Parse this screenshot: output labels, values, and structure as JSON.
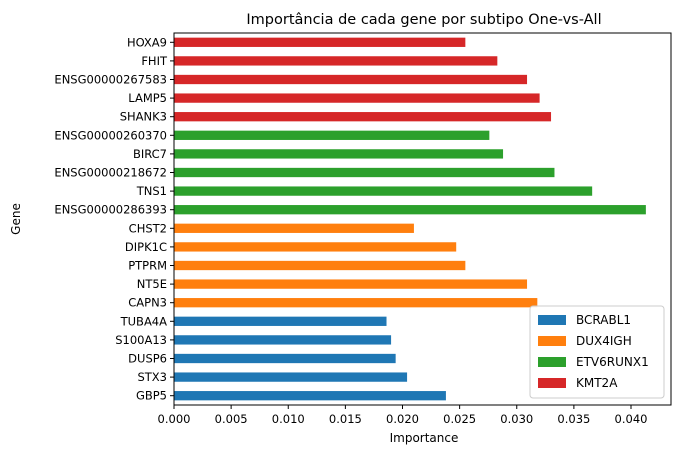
{
  "chart_data": {
    "type": "bar",
    "orientation": "horizontal",
    "title": "Importância de cada gene por subtipo One-vs-All",
    "xlabel": "Importance",
    "ylabel": "Gene",
    "xlim": [
      0,
      0.0435
    ],
    "xticks": [
      "0.000",
      "0.005",
      "0.010",
      "0.015",
      "0.020",
      "0.025",
      "0.030",
      "0.035",
      "0.040"
    ],
    "grid": false,
    "legend_position": "lower-right",
    "series": [
      {
        "name": "BCRABL1",
        "color": "#1f77b4"
      },
      {
        "name": "DUX4IGH",
        "color": "#ff7f0e"
      },
      {
        "name": "ETV6RUNX1",
        "color": "#2ca02c"
      },
      {
        "name": "KMT2A",
        "color": "#d62728"
      }
    ],
    "bars": [
      {
        "gene": "GBP5",
        "value": 0.0238,
        "series": "BCRABL1"
      },
      {
        "gene": "STX3",
        "value": 0.0204,
        "series": "BCRABL1"
      },
      {
        "gene": "DUSP6",
        "value": 0.0194,
        "series": "BCRABL1"
      },
      {
        "gene": "S100A13",
        "value": 0.019,
        "series": "BCRABL1"
      },
      {
        "gene": "TUBA4A",
        "value": 0.0186,
        "series": "BCRABL1"
      },
      {
        "gene": "CAPN3",
        "value": 0.0318,
        "series": "DUX4IGH"
      },
      {
        "gene": "NT5E",
        "value": 0.0309,
        "series": "DUX4IGH"
      },
      {
        "gene": "PTPRM",
        "value": 0.0255,
        "series": "DUX4IGH"
      },
      {
        "gene": "DIPK1C",
        "value": 0.0247,
        "series": "DUX4IGH"
      },
      {
        "gene": "CHST2",
        "value": 0.021,
        "series": "DUX4IGH"
      },
      {
        "gene": "ENSG00000286393",
        "value": 0.0413,
        "series": "ETV6RUNX1"
      },
      {
        "gene": "TNS1",
        "value": 0.0366,
        "series": "ETV6RUNX1"
      },
      {
        "gene": "ENSG00000218672",
        "value": 0.0333,
        "series": "ETV6RUNX1"
      },
      {
        "gene": "BIRC7",
        "value": 0.0288,
        "series": "ETV6RUNX1"
      },
      {
        "gene": "ENSG00000260370",
        "value": 0.0276,
        "series": "ETV6RUNX1"
      },
      {
        "gene": "SHANK3",
        "value": 0.033,
        "series": "KMT2A"
      },
      {
        "gene": "LAMP5",
        "value": 0.032,
        "series": "KMT2A"
      },
      {
        "gene": "ENSG00000267583",
        "value": 0.0309,
        "series": "KMT2A"
      },
      {
        "gene": "FHIT",
        "value": 0.0283,
        "series": "KMT2A"
      },
      {
        "gene": "HOXA9",
        "value": 0.0255,
        "series": "KMT2A"
      }
    ]
  }
}
